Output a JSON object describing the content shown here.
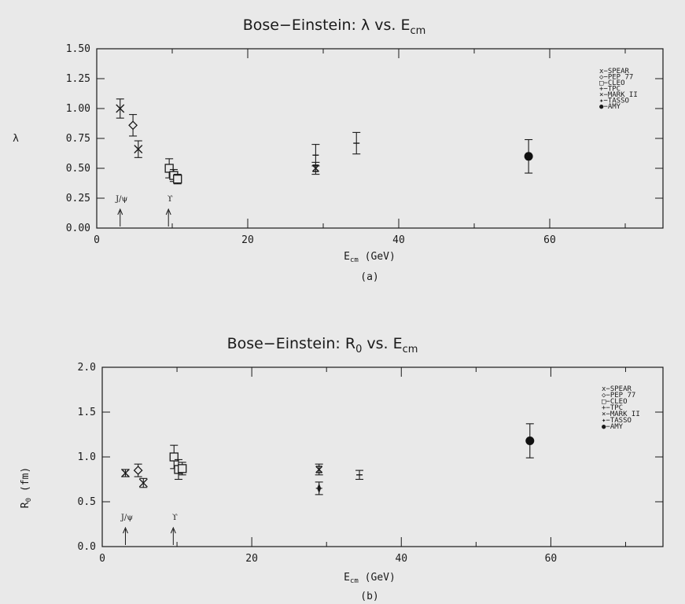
{
  "chart_data": [
    {
      "type": "scatter",
      "panel_label": "(a)",
      "title": "Bose−Einstein: λ vs. E",
      "title_sub": "cm",
      "xlabel": "E",
      "xlabel_sub": "cm",
      "xlabel_unit": " (GeV)",
      "ylabel": "λ",
      "ylabel_sub": "",
      "ylabel_unit": "",
      "xlim": [
        0,
        75
      ],
      "ylim": [
        0,
        1.5
      ],
      "xticks": [
        0,
        20,
        40,
        60
      ],
      "yticks": [
        "0.00",
        "0.25",
        "0.50",
        "0.75",
        "1.00",
        "1.25",
        "1.50"
      ],
      "legend": [
        "x−SPEAR",
        "◇−PEP 77",
        "□−CLEO",
        "+−TPC",
        "⨯−MARK II",
        "✦−TASSO",
        "●−AMY"
      ],
      "annotations": [
        {
          "text": "J/ψ",
          "x": 3.1
        },
        {
          "text": "ϒ",
          "x": 9.5
        }
      ],
      "series": [
        {
          "name": "SPEAR",
          "marker": "x",
          "points": [
            {
              "x": 3.1,
              "y": 1.0,
              "err": 0.08
            },
            {
              "x": 5.5,
              "y": 0.66,
              "err": 0.07
            }
          ]
        },
        {
          "name": "PEP 77",
          "marker": "diamond",
          "points": [
            {
              "x": 4.8,
              "y": 0.86,
              "err": 0.09
            }
          ]
        },
        {
          "name": "CLEO",
          "marker": "square",
          "points": [
            {
              "x": 9.6,
              "y": 0.5,
              "err": 0.08
            },
            {
              "x": 10.2,
              "y": 0.44,
              "err": 0.05
            },
            {
              "x": 10.7,
              "y": 0.41,
              "err": 0.04
            }
          ]
        },
        {
          "name": "TPC",
          "marker": "plus",
          "points": [
            {
              "x": 29.0,
              "y": 0.61,
              "err": 0.09
            },
            {
              "x": 34.4,
              "y": 0.71,
              "err": 0.09
            }
          ]
        },
        {
          "name": "MARK II",
          "marker": "xsq",
          "points": [
            {
              "x": 29.0,
              "y": 0.5,
              "err": 0.05
            }
          ]
        },
        {
          "name": "AMY",
          "marker": "dot",
          "points": [
            {
              "x": 57.2,
              "y": 0.6,
              "err": 0.14
            }
          ]
        }
      ]
    },
    {
      "type": "scatter",
      "panel_label": "(b)",
      "title": "Bose−Einstein: R",
      "title_sub": "0",
      "title_tail": " vs. E",
      "title_sub2": "cm",
      "xlabel": "E",
      "xlabel_sub": "cm",
      "xlabel_unit": " (GeV)",
      "ylabel": "R",
      "ylabel_sub": "0",
      "ylabel_unit": " (fm)",
      "xlim": [
        0,
        75
      ],
      "ylim": [
        0,
        2.0
      ],
      "xticks": [
        0,
        20,
        40,
        60
      ],
      "yticks": [
        "0.0",
        "0.5",
        "1.0",
        "1.5",
        "2.0"
      ],
      "legend": [
        "x−SPEAR",
        "◇−PEP 77",
        "□−CLEO",
        "+−TPC",
        "⨯−MARK II",
        "✦−TASSO",
        "●−AMY"
      ],
      "annotations": [
        {
          "text": "J/ψ",
          "x": 3.1
        },
        {
          "text": "ϒ",
          "x": 9.5
        }
      ],
      "series": [
        {
          "name": "SPEAR",
          "marker": "x",
          "points": [
            {
              "x": 3.1,
              "y": 0.82,
              "err": 0.04
            },
            {
              "x": 5.5,
              "y": 0.71,
              "err": 0.05
            }
          ]
        },
        {
          "name": "PEP 77",
          "marker": "diamond",
          "points": [
            {
              "x": 4.8,
              "y": 0.85,
              "err": 0.07
            }
          ]
        },
        {
          "name": "CLEO",
          "marker": "square",
          "points": [
            {
              "x": 9.6,
              "y": 1.0,
              "err": 0.13
            },
            {
              "x": 10.2,
              "y": 0.86,
              "err": 0.11
            },
            {
              "x": 10.7,
              "y": 0.87,
              "err": 0.07
            }
          ]
        },
        {
          "name": "TPC",
          "marker": "plus",
          "points": [
            {
              "x": 34.4,
              "y": 0.8,
              "err": 0.05
            }
          ]
        },
        {
          "name": "MARK II",
          "marker": "xsq",
          "points": [
            {
              "x": 29.0,
              "y": 0.86,
              "err": 0.06
            }
          ]
        },
        {
          "name": "TASSO",
          "marker": "star",
          "points": [
            {
              "x": 29.0,
              "y": 0.65,
              "err": 0.07
            }
          ]
        },
        {
          "name": "AMY",
          "marker": "dot",
          "points": [
            {
              "x": 57.2,
              "y": 1.18,
              "err": 0.19
            }
          ]
        }
      ]
    }
  ]
}
